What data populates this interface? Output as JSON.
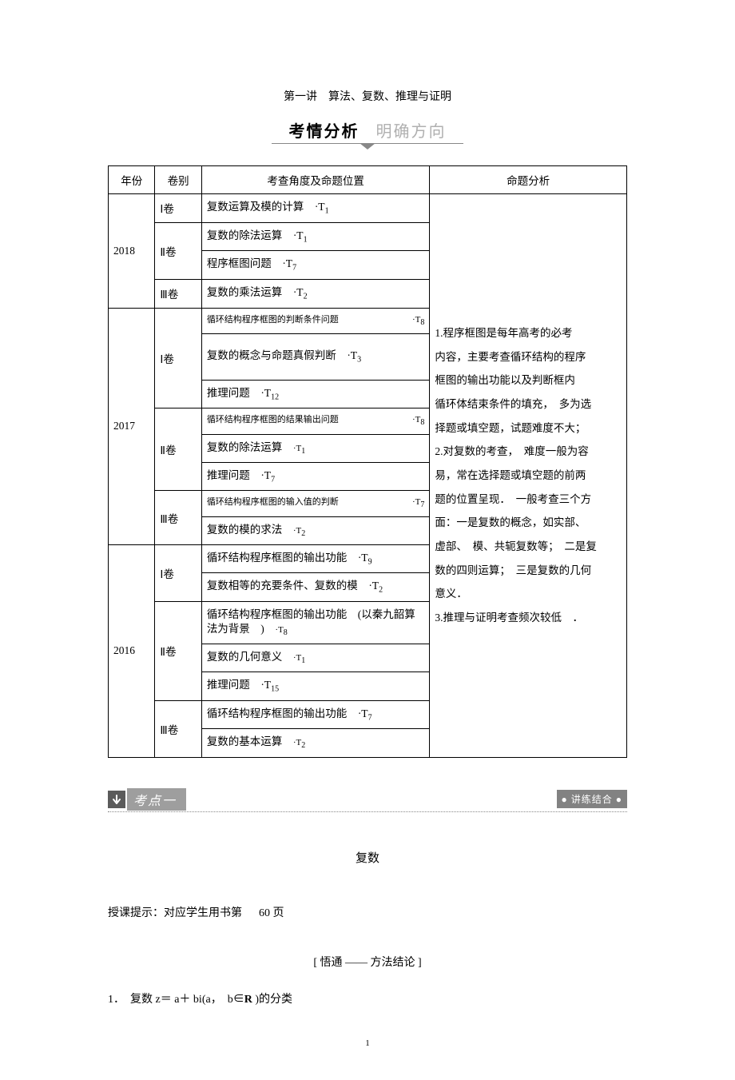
{
  "title": "第一讲　算法、复数、推理与证明",
  "banner": {
    "bold": "考情分析",
    "light": "明确方向"
  },
  "table": {
    "headers": [
      "年份",
      "卷别",
      "考查角度及命题位置",
      "命题分析"
    ],
    "col_widths_pct": [
      9,
      9,
      44,
      38
    ],
    "analysis_lines": [
      "1.程序框图是每年高考的必考",
      "内容，主要考查循环结构的程序",
      "框图的输出功能以及判断框内",
      "循环体结束条件的填充，　多为选",
      "择题或填空题，试题难度不大；",
      "2.对复数的考查，　难度一般为容",
      "易，常在选择题或填空题的前两",
      "题的位置呈现．　一般考查三个方",
      "面：一是复数的概念，如实部、",
      "虚部、　模、共轭复数等；　二是复",
      "数的四则运算；　三是复数的几何",
      "意义．",
      "3.推理与证明考查频次较低　．"
    ],
    "years": [
      {
        "year": "2018",
        "vols": [
          {
            "vol": "Ⅰ卷",
            "rows": [
              {
                "text": "复数运算及模的计算",
                "tref": "·T",
                "sub": "1"
              }
            ]
          },
          {
            "vol": "Ⅱ卷",
            "rows": [
              {
                "text": "复数的除法运算",
                "tref": "·T",
                "sub": "1"
              },
              {
                "text": "程序框图问题",
                "tref": "·T",
                "sub": "7"
              }
            ]
          },
          {
            "vol": "Ⅲ卷",
            "rows": [
              {
                "text": "复数的乘法运算",
                "tref": "·T",
                "sub": "2"
              }
            ]
          }
        ]
      },
      {
        "year": "2017",
        "vols": [
          {
            "vol": "Ⅰ卷",
            "rows": [
              {
                "text": "循环结构程序框图的判断条件问题",
                "tref": "·T",
                "sub": "8",
                "small": true,
                "split": true
              },
              {
                "text": "复数的概念与命题真假判断",
                "tref": "·T",
                "sub": "3",
                "tall": true
              },
              {
                "text": "推理问题",
                "tref": "·T",
                "sub": "12"
              }
            ]
          },
          {
            "vol": "Ⅱ卷",
            "rows": [
              {
                "text": "循环结构程序框图的结果输出问题",
                "tref": "·T",
                "sub": "8",
                "small": true,
                "split": true
              },
              {
                "text": "复数的除法运算",
                "tref": "·T",
                "sub": "1",
                "small_ref": true
              },
              {
                "text": "推理问题",
                "tref": "·T",
                "sub": "7"
              }
            ]
          },
          {
            "vol": "Ⅲ卷",
            "rows": [
              {
                "text": "循环结构程序框图的输入值的判断",
                "tref": "·T",
                "sub": "7",
                "small": true,
                "split": true
              },
              {
                "text": "复数的模的求法",
                "tref": "·T",
                "sub": "2",
                "small_ref": true
              }
            ]
          }
        ]
      },
      {
        "year": "2016",
        "vols": [
          {
            "vol": "Ⅰ卷",
            "rows": [
              {
                "text": "循环结构程序框图的输出功能",
                "tref": "·T",
                "sub": "9"
              },
              {
                "text": "复数相等的充要条件、复数的模",
                "tref": "·T",
                "sub": "2"
              }
            ]
          },
          {
            "vol": "Ⅱ卷",
            "rows": [
              {
                "text": "循环结构程序框图的输出功能　(以秦九韶算法为背景　)",
                "tref": "·T",
                "sub": "8",
                "small_ref": true,
                "multiline": true
              },
              {
                "text": "复数的几何意义",
                "tref": "·T",
                "sub": "1",
                "small_ref": true
              },
              {
                "text": "推理问题",
                "tref": "·T",
                "sub": "15"
              }
            ]
          },
          {
            "vol": "Ⅲ卷",
            "rows": [
              {
                "text": "循环结构程序框图的输出功能",
                "tref": "·T",
                "sub": "7"
              },
              {
                "text": "复数的基本运算",
                "tref": "·T",
                "sub": "2",
                "small_ref": true
              }
            ]
          }
        ]
      }
    ]
  },
  "section": {
    "label": "考点一",
    "right": "● 讲练结合 ●"
  },
  "subtitle": "复数",
  "note_prefix": "授课提示：对应学生用书第",
  "note_page": "60 页",
  "method_heading": "[ 悟通 —— 方法结论 ]",
  "item1_prefix": "1．　复数 z＝ a＋ bi(a，　b∈",
  "item1_bold": "R",
  "item1_suffix": " )的分类",
  "page_num": "1",
  "colors": {
    "text": "#000000",
    "bg": "#ffffff",
    "banner_light": "#b0b0b0",
    "section_arrow_bg": "#5b5b5b",
    "section_label_bg": "#9e9e9e",
    "section_right_bg": "#828282",
    "border": "#000000",
    "dotline": "#888888"
  },
  "fonts": {
    "body_family": "SimSun",
    "title_size_pt": 11,
    "banner_size_pt": 15,
    "table_size_pt": 10,
    "small_size_pt": 8
  }
}
